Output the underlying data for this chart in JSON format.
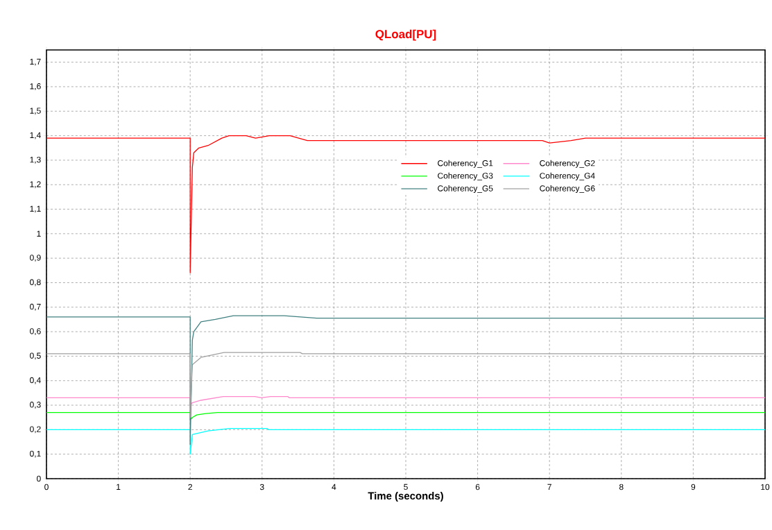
{
  "chart_data": {
    "type": "line",
    "title": "QLoad[PU]",
    "xlabel": "Time (seconds)",
    "xlim": [
      0,
      10
    ],
    "ylim": [
      0,
      1.75
    ],
    "xticks": [
      0,
      1,
      2,
      3,
      4,
      5,
      6,
      7,
      8,
      9,
      10
    ],
    "yticks": [
      0,
      {
        "value": 0.1,
        "label": "0,1"
      },
      {
        "value": 0.2,
        "label": "0,2"
      },
      {
        "value": 0.3,
        "label": "0,3"
      },
      {
        "value": 0.4,
        "label": "0,4"
      },
      {
        "value": 0.5,
        "label": "0,5"
      },
      {
        "value": 0.6,
        "label": "0,6"
      },
      {
        "value": 0.7,
        "label": "0,7"
      },
      {
        "value": 0.8,
        "label": "0,8"
      },
      {
        "value": 0.9,
        "label": "0,9"
      },
      1,
      {
        "value": 1.1,
        "label": "1,1"
      },
      {
        "value": 1.2,
        "label": "1,2"
      },
      {
        "value": 1.3,
        "label": "1,3"
      },
      {
        "value": 1.4,
        "label": "1,4"
      },
      {
        "value": 1.5,
        "label": "1,5"
      },
      {
        "value": 1.6,
        "label": "1,6"
      },
      {
        "value": 1.7,
        "label": "1,7"
      }
    ],
    "grid": true,
    "legend": "top right",
    "marker": "none",
    "line_style": "solid",
    "series": [
      {
        "name": "Coherency_G1",
        "color": "#ff0000",
        "x": [
          0,
          2.0,
          2.0,
          2.03,
          2.05,
          2.12,
          2.25,
          2.44,
          2.54,
          2.78,
          2.91,
          3.1,
          3.39,
          3.63,
          4.05,
          6.9,
          7.0,
          7.3,
          7.5,
          10
        ],
        "values": [
          1.39,
          1.39,
          0.84,
          1.27,
          1.33,
          1.35,
          1.36,
          1.39,
          1.4,
          1.4,
          1.39,
          1.4,
          1.4,
          1.38,
          1.38,
          1.38,
          1.37,
          1.38,
          1.39,
          1.39
        ]
      },
      {
        "name": "Coherency_G2",
        "color": "#ff88cc",
        "x": [
          0,
          2.0,
          2.0,
          2.03,
          2.15,
          2.46,
          2.9,
          2.99,
          3.12,
          3.36,
          3.38,
          10
        ],
        "values": [
          0.33,
          0.33,
          0.3,
          0.31,
          0.32,
          0.335,
          0.335,
          0.33,
          0.335,
          0.335,
          0.33,
          0.33
        ]
      },
      {
        "name": "Coherency_G3",
        "color": "#00ff00",
        "x": [
          0,
          2.0,
          2.0,
          2.03,
          2.09,
          2.2,
          2.38,
          10
        ],
        "values": [
          0.27,
          0.27,
          0.24,
          0.25,
          0.26,
          0.265,
          0.27,
          0.27
        ]
      },
      {
        "name": "Coherency_G4",
        "color": "#00ffff",
        "x": [
          0,
          2.0,
          2.0,
          2.03,
          2.25,
          2.55,
          3.07,
          3.09,
          10
        ],
        "values": [
          0.2,
          0.2,
          0.1,
          0.18,
          0.195,
          0.205,
          0.205,
          0.2,
          0.2
        ]
      },
      {
        "name": "Coherency_G5",
        "color": "#408080",
        "x": [
          0,
          2.0,
          2.0,
          2.03,
          2.05,
          2.15,
          2.35,
          2.6,
          3.31,
          3.76,
          10
        ],
        "values": [
          0.66,
          0.66,
          0.14,
          0.565,
          0.6,
          0.64,
          0.65,
          0.665,
          0.665,
          0.655,
          0.655
        ]
      },
      {
        "name": "Coherency_G6",
        "color": "#a0a0a0",
        "x": [
          0,
          2.0,
          2.0,
          2.03,
          2.15,
          2.47,
          3.53,
          3.56,
          10
        ],
        "values": [
          0.51,
          0.51,
          0.25,
          0.465,
          0.495,
          0.515,
          0.515,
          0.51,
          0.51
        ]
      }
    ]
  }
}
